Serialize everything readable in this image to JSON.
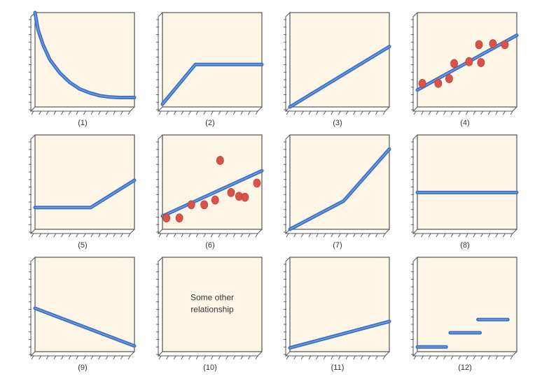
{
  "figure": {
    "panel_count": 12,
    "colors": {
      "background": "#fdf6e6",
      "frame": "#555555",
      "line": "#3a6fc4",
      "line_highlight": "#6f9be0",
      "point": "#d9534a"
    }
  },
  "chart_data": [
    {
      "id": "1",
      "caption": "(1)",
      "type": "line",
      "description_label": "",
      "x": [
        0,
        0.3,
        0.8,
        1.5,
        2.5,
        3.5,
        4.5,
        5.5,
        6.5,
        7.5,
        8.5,
        10
      ],
      "y": [
        10,
        8.2,
        6.6,
        5.0,
        3.6,
        2.6,
        1.9,
        1.5,
        1.2,
        1.05,
        1.0,
        1.0
      ],
      "xlim": [
        0,
        10
      ],
      "ylim": [
        0,
        10
      ]
    },
    {
      "id": "2",
      "caption": "(2)",
      "type": "line",
      "description_label": "",
      "x": [
        0,
        3.3,
        10
      ],
      "y": [
        0.3,
        4.5,
        4.5
      ],
      "xlim": [
        0,
        10
      ],
      "ylim": [
        0,
        10
      ]
    },
    {
      "id": "3",
      "caption": "(3)",
      "type": "line",
      "description_label": "",
      "x": [
        0,
        10
      ],
      "y": [
        0,
        6.4
      ],
      "xlim": [
        0,
        10
      ],
      "ylim": [
        0,
        10
      ]
    },
    {
      "id": "4",
      "caption": "(4)",
      "type": "scatter",
      "description_label": "",
      "points_x": [
        0.5,
        2.1,
        3.2,
        3.7,
        5.2,
        6.2,
        6.4,
        7.6,
        8.8
      ],
      "points_y": [
        2.5,
        2.5,
        3.0,
        4.6,
        4.8,
        6.6,
        4.7,
        6.7,
        6.6
      ],
      "trend_x": [
        0,
        10
      ],
      "trend_y": [
        1.8,
        7.6
      ],
      "xlim": [
        0,
        10
      ],
      "ylim": [
        0,
        10
      ]
    },
    {
      "id": "5",
      "caption": "(5)",
      "type": "line",
      "description_label": "",
      "x": [
        0,
        5.6,
        10
      ],
      "y": [
        2.3,
        2.3,
        5.2
      ],
      "xlim": [
        0,
        10
      ],
      "ylim": [
        0,
        10
      ]
    },
    {
      "id": "6",
      "caption": "(6)",
      "type": "scatter",
      "description_label": "",
      "points_x": [
        0.4,
        1.7,
        2.9,
        4.2,
        5.3,
        5.8,
        6.9,
        7.7,
        8.3,
        9.5
      ],
      "points_y": [
        1.2,
        1.2,
        2.6,
        2.6,
        3.1,
        7.3,
        3.9,
        3.5,
        3.4,
        4.9
      ],
      "trend_x": [
        0,
        10
      ],
      "trend_y": [
        1.4,
        6.2
      ],
      "xlim": [
        0,
        10
      ],
      "ylim": [
        0,
        10
      ]
    },
    {
      "id": "7",
      "caption": "(7)",
      "type": "line",
      "description_label": "",
      "x": [
        0,
        5.4,
        10
      ],
      "y": [
        0,
        3.0,
        8.5
      ],
      "xlim": [
        0,
        10
      ],
      "ylim": [
        0,
        10
      ]
    },
    {
      "id": "8",
      "caption": "(8)",
      "type": "line",
      "description_label": "",
      "x": [
        0,
        10
      ],
      "y": [
        3.9,
        3.9
      ],
      "xlim": [
        0,
        10
      ],
      "ylim": [
        0,
        10
      ]
    },
    {
      "id": "9",
      "caption": "(9)",
      "type": "line",
      "description_label": "",
      "x": [
        0,
        10
      ],
      "y": [
        4.6,
        0.6
      ],
      "xlim": [
        0,
        10
      ],
      "ylim": [
        0,
        10
      ]
    },
    {
      "id": "10",
      "caption": "(10)",
      "type": "text",
      "description_label": "",
      "text_lines": [
        "Some other",
        "relationship"
      ],
      "xlim": [
        0,
        10
      ],
      "ylim": [
        0,
        10
      ]
    },
    {
      "id": "11",
      "caption": "(11)",
      "type": "line",
      "description_label": "",
      "x": [
        0,
        10
      ],
      "y": [
        0.4,
        3.2
      ],
      "xlim": [
        0,
        10
      ],
      "ylim": [
        0,
        10
      ]
    },
    {
      "id": "12",
      "caption": "(12)",
      "type": "step",
      "description_label": "",
      "segments": [
        [
          0,
          2.9,
          0.5
        ],
        [
          3.3,
          6.3,
          2.0
        ],
        [
          6.1,
          9.1,
          3.4
        ]
      ],
      "xlim": [
        0,
        10
      ],
      "ylim": [
        0,
        10
      ]
    }
  ]
}
